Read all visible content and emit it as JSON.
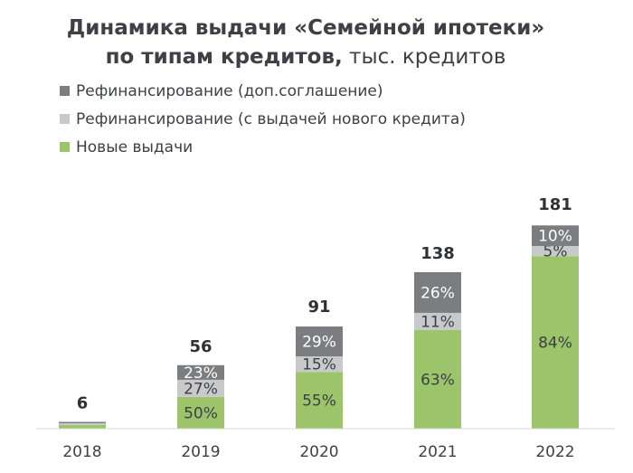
{
  "chart_data": {
    "type": "bar",
    "stacked": true,
    "title": "Динамика выдачи «Семейной ипотеки»",
    "subtitle_bold": "по типам кредитов,",
    "subtitle_unit": " тыс. кредитов",
    "categories": [
      "2018",
      "2019",
      "2020",
      "2021",
      "2022"
    ],
    "totals": [
      6,
      56,
      91,
      138,
      181
    ],
    "total_labels": [
      "6",
      "56",
      "91",
      "138",
      "181"
    ],
    "series": [
      {
        "name": "Новые выдачи",
        "color": "#9bc46b",
        "shares": [
          0.55,
          0.5,
          0.55,
          0.63,
          0.84
        ],
        "labels": [
          "",
          "50%",
          "55%",
          "63%",
          "84%"
        ]
      },
      {
        "name": "Рефинансирование (с выдачей нового кредита)",
        "color": "#c8c9cb",
        "shares": [
          0.25,
          0.27,
          0.15,
          0.11,
          0.05
        ],
        "labels": [
          "",
          "27%",
          "15%",
          "11%",
          "5%"
        ]
      },
      {
        "name": "Рефинансирование (доп.соглашение)",
        "color": "#7c7d80",
        "shares": [
          0.2,
          0.23,
          0.29,
          0.26,
          0.1
        ],
        "labels": [
          "",
          "23%",
          "29%",
          "26%",
          "10%"
        ]
      }
    ],
    "legend_order": [
      2,
      1,
      0
    ],
    "legend_position": "top-left",
    "ylim": [
      0,
      181
    ],
    "grid": false
  }
}
